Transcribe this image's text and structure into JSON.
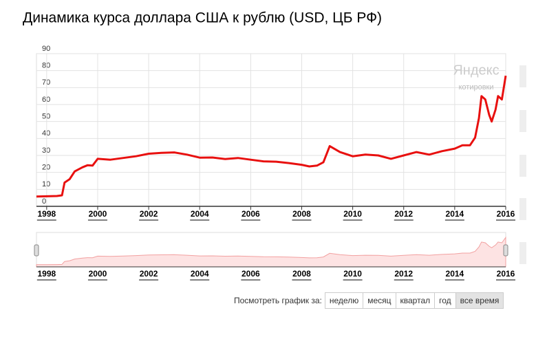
{
  "chart_data": {
    "type": "line",
    "title": "Динамика курса доллара США к рублю (USD, ЦБ РФ)",
    "watermark": [
      "Яндекс",
      "котировки"
    ],
    "color": "#e8100f",
    "x": [
      1997.6,
      1998.0,
      1998.4,
      1998.6,
      1998.7,
      1998.9,
      1999.1,
      1999.4,
      1999.6,
      1999.8,
      2000.0,
      2000.5,
      2001.0,
      2001.5,
      2002.0,
      2002.5,
      2003.0,
      2003.5,
      2004.0,
      2004.5,
      2005.0,
      2005.5,
      2006.0,
      2006.5,
      2007.0,
      2007.5,
      2008.0,
      2008.3,
      2008.6,
      2008.85,
      2009.1,
      2009.5,
      2010.0,
      2010.5,
      2011.0,
      2011.5,
      2012.0,
      2012.5,
      2013.0,
      2013.5,
      2014.0,
      2014.3,
      2014.6,
      2014.8,
      2014.95,
      2015.05,
      2015.2,
      2015.35,
      2015.45,
      2015.6,
      2015.7,
      2015.85,
      2016.0
    ],
    "values": [
      5.8,
      5.9,
      6.1,
      6.5,
      14,
      16,
      20.6,
      23,
      24.2,
      24,
      28,
      27.5,
      28.5,
      29.5,
      31,
      31.5,
      31.8,
      30.5,
      28.7,
      28.8,
      27.9,
      28.5,
      27.5,
      26.5,
      26.3,
      25.5,
      24.5,
      23.5,
      24,
      26,
      35.5,
      32,
      29.5,
      30.5,
      30,
      28,
      30,
      32,
      30.5,
      32.5,
      34,
      36,
      36,
      40.5,
      52,
      65,
      63,
      54,
      50,
      57,
      65,
      63,
      77
    ],
    "xlim": [
      1997.6,
      2016.0
    ],
    "ylim": [
      0,
      90
    ],
    "xticks": [
      1998,
      2000,
      2002,
      2004,
      2006,
      2008,
      2010,
      2012,
      2014,
      2016
    ],
    "yticks": [
      0,
      10,
      20,
      30,
      40,
      50,
      60,
      70,
      80,
      90
    ],
    "grid": true
  },
  "period_selector": {
    "label": "Посмотреть график за:",
    "options": [
      "неделю",
      "месяц",
      "квартал",
      "год",
      "все время"
    ],
    "selected": 4
  }
}
